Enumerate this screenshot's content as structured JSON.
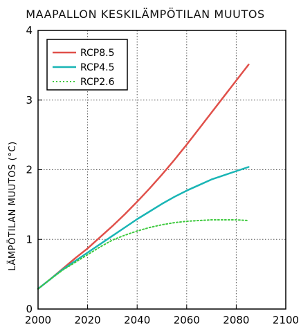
{
  "chart_data": {
    "type": "line",
    "title": "MAAPALLON KESKILÄMPÖTILAN MUUTOS",
    "xlabel": "",
    "ylabel": "LÄMPÖTILAN MUUTOS (°C)",
    "xlim": [
      2000,
      2100
    ],
    "ylim": [
      0,
      4
    ],
    "xticks": [
      2000,
      2020,
      2040,
      2060,
      2080,
      2100
    ],
    "yticks": [
      0,
      1,
      2,
      3,
      4
    ],
    "grid": true,
    "legend_position": "top-left",
    "x": [
      2000,
      2005,
      2010,
      2015,
      2020,
      2025,
      2030,
      2035,
      2040,
      2045,
      2050,
      2055,
      2060,
      2065,
      2070,
      2075,
      2080,
      2085
    ],
    "series": [
      {
        "name": "RCP8.5",
        "color": "#e0504a",
        "style": "solid",
        "values": [
          0.29,
          0.43,
          0.58,
          0.73,
          0.87,
          1.03,
          1.19,
          1.36,
          1.54,
          1.73,
          1.93,
          2.14,
          2.36,
          2.59,
          2.82,
          3.05,
          3.28,
          3.51
        ]
      },
      {
        "name": "RCP4.5",
        "color": "#19b5b5",
        "style": "solid",
        "values": [
          0.29,
          0.43,
          0.57,
          0.69,
          0.81,
          0.93,
          1.05,
          1.17,
          1.29,
          1.4,
          1.51,
          1.61,
          1.7,
          1.78,
          1.86,
          1.92,
          1.98,
          2.04
        ]
      },
      {
        "name": "RCP2.6",
        "color": "#3dc93d",
        "style": "dotted",
        "values": [
          0.29,
          0.43,
          0.56,
          0.67,
          0.78,
          0.89,
          0.99,
          1.06,
          1.12,
          1.17,
          1.21,
          1.24,
          1.26,
          1.27,
          1.28,
          1.28,
          1.28,
          1.27
        ]
      }
    ]
  }
}
